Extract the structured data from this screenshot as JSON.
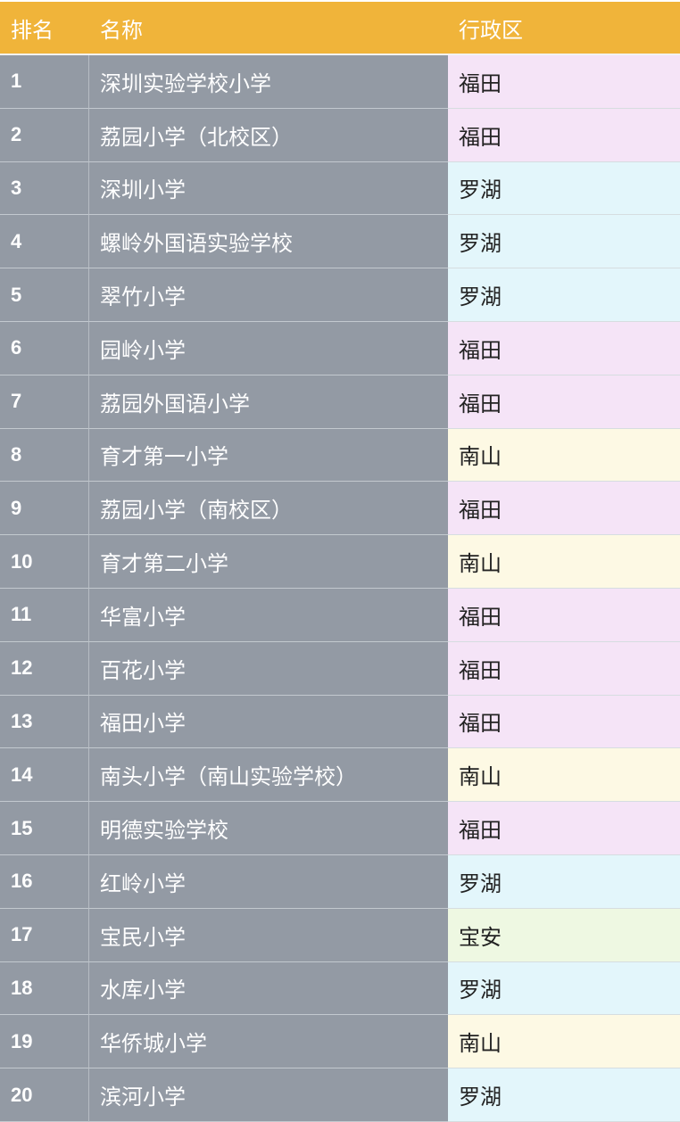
{
  "header": {
    "rank": "排名",
    "name": "名称",
    "district": "行政区"
  },
  "district_colors": {
    "福田": "#f5e4f7",
    "罗湖": "#e3f6fb",
    "南山": "#fdf9e4",
    "宝安": "#eef8e2"
  },
  "header_color": "#f0b43a",
  "name_column_color": "#939aa4",
  "rows": [
    {
      "rank": "1",
      "name": "深圳实验学校小学",
      "district": "福田"
    },
    {
      "rank": "2",
      "name": "荔园小学（北校区）",
      "district": "福田"
    },
    {
      "rank": "3",
      "name": "深圳小学",
      "district": "罗湖"
    },
    {
      "rank": "4",
      "name": "螺岭外国语实验学校",
      "district": "罗湖"
    },
    {
      "rank": "5",
      "name": "翠竹小学",
      "district": "罗湖"
    },
    {
      "rank": "6",
      "name": "园岭小学",
      "district": "福田"
    },
    {
      "rank": "7",
      "name": "荔园外国语小学",
      "district": "福田"
    },
    {
      "rank": "8",
      "name": "育才第一小学",
      "district": "南山"
    },
    {
      "rank": "9",
      "name": "荔园小学（南校区）",
      "district": "福田"
    },
    {
      "rank": "10",
      "name": "育才第二小学",
      "district": "南山"
    },
    {
      "rank": "11",
      "name": "华富小学",
      "district": "福田"
    },
    {
      "rank": "12",
      "name": "百花小学",
      "district": "福田"
    },
    {
      "rank": "13",
      "name": "福田小学",
      "district": "福田"
    },
    {
      "rank": "14",
      "name": "南头小学（南山实验学校）",
      "district": "南山"
    },
    {
      "rank": "15",
      "name": "明德实验学校",
      "district": "福田"
    },
    {
      "rank": "16",
      "name": "红岭小学",
      "district": "罗湖"
    },
    {
      "rank": "17",
      "name": "宝民小学",
      "district": "宝安"
    },
    {
      "rank": "18",
      "name": "水库小学",
      "district": "罗湖"
    },
    {
      "rank": "19",
      "name": "华侨城小学",
      "district": "南山"
    },
    {
      "rank": "20",
      "name": "滨河小学",
      "district": "罗湖"
    }
  ]
}
